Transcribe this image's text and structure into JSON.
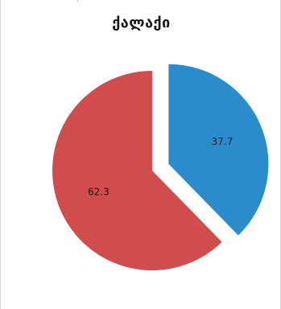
{
  "chart_data": {
    "type": "pie",
    "title": "ქალაქი",
    "slices": [
      {
        "label": "",
        "value": 37.7,
        "display": "37.7",
        "color": "#2b8ccc",
        "exploded": true
      },
      {
        "label": "",
        "value": 62.3,
        "display": "62.3",
        "color": "#d14c4c",
        "exploded": false
      }
    ],
    "legend": "none",
    "data_labels": true
  }
}
